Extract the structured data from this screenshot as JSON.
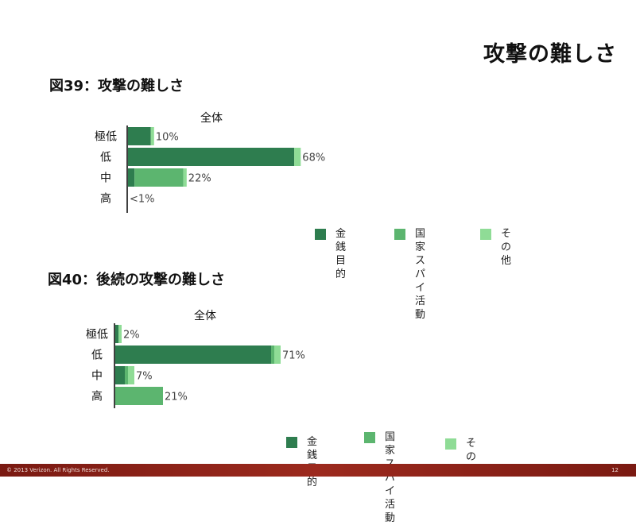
{
  "slide": {
    "title": "攻撃の難しさ",
    "footer_text": "© 2013 Verizon. All Rights Reserved.",
    "page_number": "12"
  },
  "colors": {
    "financial": "#2e7d4f",
    "state": "#5cb56f",
    "other": "#8fdc96"
  },
  "legend": {
    "financial": "金銭目的",
    "state": "国家スパイ\n活動",
    "other": "その他"
  },
  "chart_data": [
    {
      "type": "bar",
      "title": "図39：攻撃の難しさ",
      "subtitle": "全体",
      "categories": [
        "極低",
        "低",
        "中",
        "高"
      ],
      "series": [
        {
          "name": "金銭目的",
          "values": [
            7,
            51,
            2,
            0
          ]
        },
        {
          "name": "国家スパイ活動",
          "values": [
            0,
            0,
            15,
            0
          ]
        },
        {
          "name": "その他",
          "values": [
            1,
            2,
            1,
            0
          ]
        }
      ],
      "data_labels": [
        "10%",
        "68%",
        "22%",
        "<1%"
      ]
    },
    {
      "type": "bar",
      "title": "図40：後続の攻撃の難しさ",
      "subtitle": "全体",
      "categories": [
        "極低",
        "低",
        "中",
        "高"
      ],
      "series": [
        {
          "name": "金銭目的",
          "values": [
            1,
            49,
            3,
            0
          ]
        },
        {
          "name": "国家スパイ活動",
          "values": [
            0,
            1,
            1,
            15
          ]
        },
        {
          "name": "その他",
          "values": [
            1,
            2,
            2,
            0
          ]
        }
      ],
      "data_labels": [
        "2%",
        "71%",
        "7%",
        "21%"
      ]
    }
  ]
}
